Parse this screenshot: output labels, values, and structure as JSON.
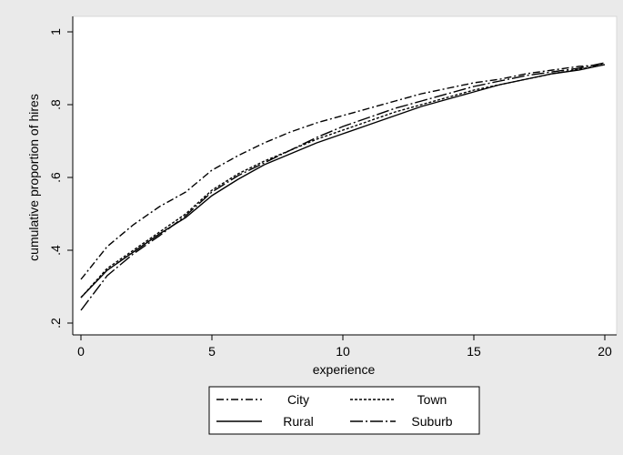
{
  "chart_data": {
    "type": "line",
    "x_label": "experience",
    "y_label": "cumulative proportion of hires",
    "x": [
      0,
      1,
      2,
      3,
      4,
      5,
      6,
      7,
      8,
      9,
      10,
      11,
      12,
      13,
      14,
      15,
      16,
      17,
      18,
      19,
      20
    ],
    "xlim": [
      0,
      20
    ],
    "xticks": [
      0,
      5,
      10,
      15,
      20
    ],
    "ylim": [
      0.2,
      1
    ],
    "yticks": [
      {
        "value": 0.2,
        "label": ".2"
      },
      {
        "value": 0.4,
        "label": ".4"
      },
      {
        "value": 0.6,
        "label": ".6"
      },
      {
        "value": 0.8,
        "label": ".8"
      },
      1
    ],
    "grid": false,
    "legend": "bottom",
    "series": [
      {
        "name": "City",
        "color": "#000000",
        "style": "dash-dot",
        "values": [
          0.32,
          0.41,
          0.47,
          0.52,
          0.56,
          0.62,
          0.66,
          0.695,
          0.725,
          0.75,
          0.77,
          0.79,
          0.81,
          0.83,
          0.845,
          0.86,
          0.87,
          0.885,
          0.895,
          0.905,
          0.91
        ]
      },
      {
        "name": "Town",
        "color": "#000000",
        "style": "short-dash",
        "values": [
          0.27,
          0.35,
          0.4,
          0.45,
          0.5,
          0.565,
          0.61,
          0.645,
          0.675,
          0.705,
          0.73,
          0.755,
          0.78,
          0.8,
          0.82,
          0.84,
          0.855,
          0.87,
          0.885,
          0.897,
          0.91
        ]
      },
      {
        "name": "Rural",
        "color": "#000000",
        "style": "solid",
        "values": [
          0.27,
          0.345,
          0.395,
          0.445,
          0.49,
          0.55,
          0.595,
          0.635,
          0.665,
          0.695,
          0.72,
          0.745,
          0.77,
          0.795,
          0.815,
          0.835,
          0.855,
          0.87,
          0.885,
          0.895,
          0.91
        ]
      },
      {
        "name": "Suburb",
        "color": "#000000",
        "style": "long-dash-dot",
        "values": [
          0.235,
          0.33,
          0.39,
          0.44,
          0.495,
          0.56,
          0.605,
          0.64,
          0.675,
          0.71,
          0.74,
          0.765,
          0.79,
          0.81,
          0.83,
          0.85,
          0.865,
          0.88,
          0.89,
          0.9,
          0.915
        ]
      }
    ]
  }
}
